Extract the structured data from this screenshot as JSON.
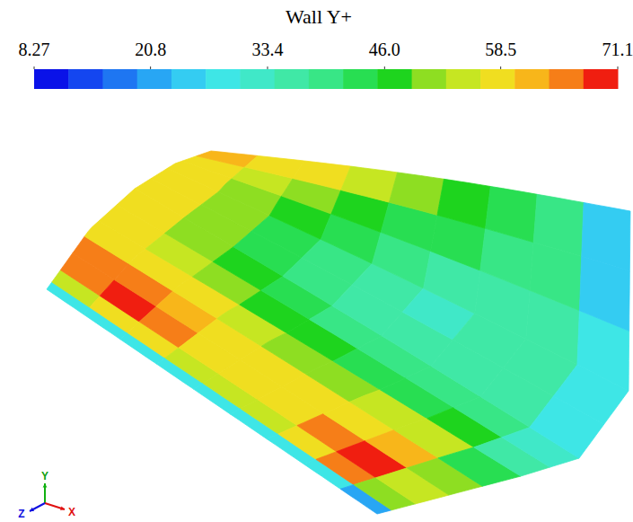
{
  "chart_data": {
    "type": "contour",
    "title": "Wall Y+",
    "colorbar": {
      "range": [
        8.27,
        71.1
      ],
      "ticks": [
        8.27,
        20.8,
        33.4,
        {
          "value": 46,
          "label": "46.0"
        },
        58.5,
        71.1
      ],
      "colors": [
        "#0a12e8",
        "#1446f0",
        "#1e76f2",
        "#28a6f4",
        "#34ccf2",
        "#3ee6e6",
        "#40e8c8",
        "#40e8a6",
        "#38e686",
        "#28de52",
        "#1ed41e",
        "#8ede22",
        "#c6e622",
        "#f0de20",
        "#f8b61a",
        "#f67e18",
        "#f01e10"
      ]
    },
    "cells": [
      [
        30,
        55,
        66,
        64,
        60,
        58,
        58,
        58,
        58,
        59,
        60,
        62
      ],
      [
        28,
        60,
        69,
        66,
        60,
        55,
        52,
        50,
        50,
        52,
        56,
        60
      ],
      [
        30,
        58,
        64,
        62,
        57,
        51,
        47,
        45,
        45,
        47,
        52,
        57
      ],
      [
        28,
        55,
        60,
        58,
        54,
        48,
        43,
        40,
        40,
        42,
        48,
        54
      ],
      [
        30,
        55,
        59,
        57,
        52,
        46,
        40,
        37,
        36,
        39,
        45,
        50
      ],
      [
        28,
        56,
        60,
        58,
        52,
        45,
        39,
        35,
        34,
        37,
        42,
        46
      ],
      [
        30,
        60,
        64,
        60,
        53,
        45,
        39,
        36,
        35,
        37,
        40,
        42
      ],
      [
        28,
        66,
        69,
        63,
        54,
        46,
        40,
        37,
        36,
        37,
        38,
        38
      ],
      [
        22,
        50,
        55,
        50,
        42,
        36,
        32,
        30,
        28,
        27,
        26,
        25
      ]
    ],
    "triad_labels": {
      "x": "X",
      "y": "Y",
      "z": "Z"
    }
  }
}
